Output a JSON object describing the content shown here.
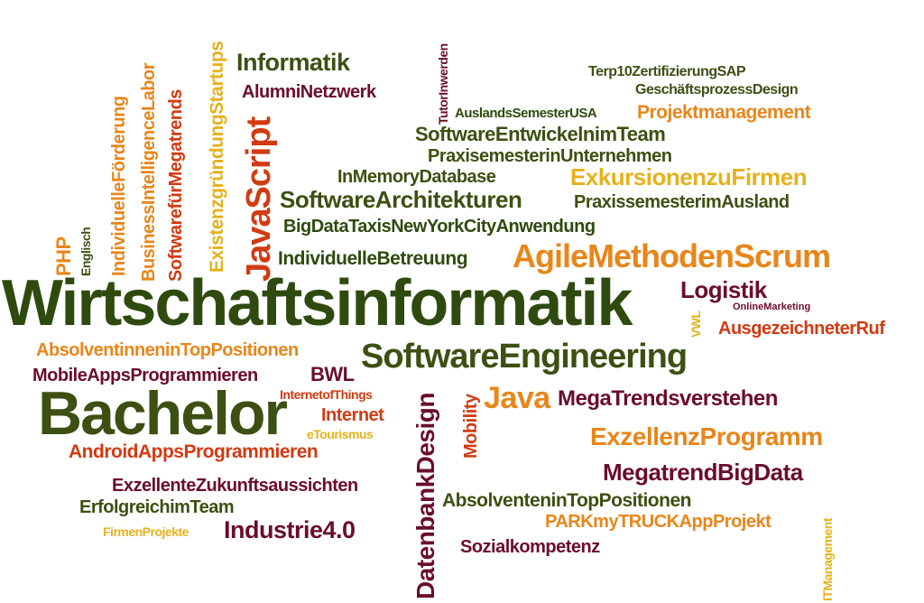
{
  "colors": {
    "green": "#2f4a0f",
    "maroon": "#6b0d2a",
    "orange": "#e8861a",
    "red": "#d13b12",
    "yellow": "#e5b21c",
    "olive": "#3d4f12"
  },
  "words": {
    "wirtschaftsinformatik": "Wirtschaftsinformatik",
    "bachelor": "Bachelor",
    "software_engineering": "SoftwareEngineering",
    "agile_methoden_scrum": "AgileMethodenScrum",
    "software_architekturen": "SoftwareArchitekturen",
    "praxissemester_ausland": "PraxissemesterimAusland",
    "exkursionen": "ExkursionenzuFirmen",
    "in_memory_database": "InMemoryDatabase",
    "praxisemester_unternehmen": "PraxisemesterinUnternehmen",
    "software_team": "SoftwareEntwickelnimTeam",
    "auslandssemester_usa": "AuslandsSemesterUSA",
    "projektmanagement": "Projektmanagement",
    "geschaeftsprozess_design": "GeschäftsprozessDesign",
    "terp10": "Terp10ZertifizierungSAP",
    "informatik": "Informatik",
    "alumni_netzwerk": "AlumniNetzwerk",
    "big_data_taxis": "BigDataTaxisNewYorkCityAnwendung",
    "individuelle_betreuung": "IndividuelleBetreuung",
    "logistik": "Logistik",
    "online_marketing": "OnlineMarketing",
    "ausgezeichneter_ruf": "AusgezeichneterRuf",
    "absolventinnen_top": "AbsolventinneninTopPositionen",
    "mobile_apps": "MobileAppsProgrammieren",
    "bwl": "BWL",
    "internet_of_things": "InternetofThings",
    "internet": "Internet",
    "etourismus": "eTourismus",
    "java": "Java",
    "mega_trends": "MegaTrendsverstehen",
    "exzellenz_programm": "ExzellenzProgramm",
    "megatrend_big_data": "MegatrendBigData",
    "android_apps": "AndroidAppsProgrammieren",
    "zukunftsaussichten": "ExzellenteZukunftsaussichten",
    "erfolgreich_team": "ErfolgreichimTeam",
    "absolventen_top": "AbsolventeninTopPositionen",
    "park_my_truck": "PARKmyTRUCKAppProjekt",
    "sozialkompetenz": "Sozialkompetenz",
    "firmen_projekte": "FirmenProjekte",
    "industrie40": "Industrie4.0",
    "javascript": "JavaScript",
    "php": "PHP",
    "englisch": "Englisch",
    "individuelle_foerderung": "IndividuelleFörderung",
    "business_intelligence": "BusinessIntelligenceLabor",
    "software_megatrends": "SoftwarefürMegatrends",
    "existenzgruendung": "ExistenzgründungStartups",
    "tutor_werden": "TutorInwerden",
    "datenbank_design": "DatenbankDesign",
    "mobility": "Mobility",
    "vwl": "VWL",
    "it_management": "ITManagement"
  }
}
